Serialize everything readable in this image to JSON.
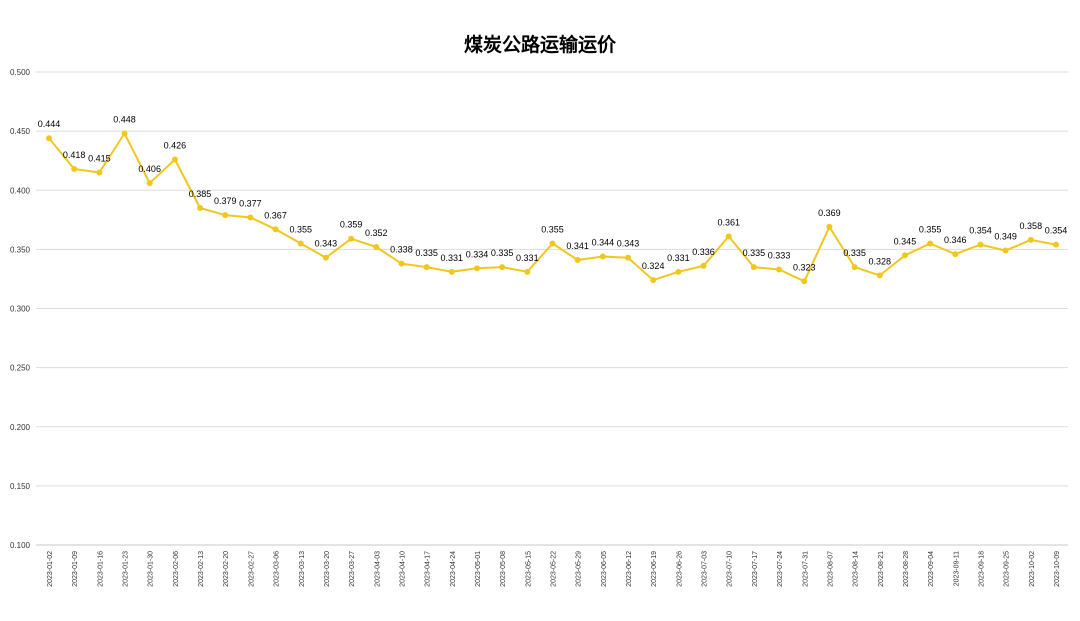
{
  "chart_data": {
    "type": "line",
    "title": "煤炭公路运输运价",
    "xlabel": "",
    "ylabel": "",
    "ylim": [
      0.1,
      0.5
    ],
    "yticks": [
      "0.100",
      "0.150",
      "0.200",
      "0.250",
      "0.300",
      "0.350",
      "0.400",
      "0.450",
      "0.500"
    ],
    "grid": true,
    "legend": "none",
    "color": "#F2C71D",
    "categories": [
      "2023-01-02",
      "2023-01-09",
      "2023-01-16",
      "2023-01-23",
      "2023-01-30",
      "2023-02-06",
      "2023-02-13",
      "2023-02-20",
      "2023-02-27",
      "2023-03-06",
      "2023-03-13",
      "2023-03-20",
      "2023-03-27",
      "2023-04-03",
      "2023-04-10",
      "2023-04-17",
      "2023-04-24",
      "2023-05-01",
      "2023-05-08",
      "2023-05-15",
      "2023-05-22",
      "2023-05-29",
      "2023-06-05",
      "2023-06-12",
      "2023-06-19",
      "2023-06-26",
      "2023-07-03",
      "2023-07-10",
      "2023-07-17",
      "2023-07-24",
      "2023-07-31",
      "2023-08-07",
      "2023-08-14",
      "2023-08-21",
      "2023-08-28",
      "2023-09-04",
      "2023-09-11",
      "2023-09-18",
      "2023-09-25",
      "2023-10-02",
      "2023-10-09"
    ],
    "values": [
      0.444,
      0.418,
      0.415,
      0.448,
      0.406,
      0.426,
      0.385,
      0.379,
      0.377,
      0.367,
      0.355,
      0.343,
      0.359,
      0.352,
      0.338,
      0.335,
      0.331,
      0.334,
      0.335,
      0.331,
      0.355,
      0.341,
      0.344,
      0.343,
      0.324,
      0.331,
      0.336,
      0.361,
      0.335,
      0.333,
      0.323,
      0.369,
      0.335,
      0.328,
      0.345,
      0.355,
      0.346,
      0.354,
      0.349,
      0.358,
      0.354
    ],
    "data_labels": [
      "0.444",
      "0.418",
      "0.415",
      "0.448",
      "0.406",
      "0.426",
      "0.385",
      "0.379",
      "0.377",
      "0.367",
      "0.355",
      "0.343",
      "0.359",
      "0.352",
      "0.338",
      "0.335",
      "0.331",
      "0.334",
      "0.335",
      "0.331",
      "0.355",
      "0.341",
      "0.344",
      "0.343",
      "0.324",
      "0.331",
      "0.336",
      "0.361",
      "0.335",
      "0.333",
      "0.323",
      "0.369",
      "0.335",
      "0.328",
      "0.345",
      "0.355",
      "0.346",
      "0.354",
      "0.349",
      "0.358",
      "0.354"
    ]
  }
}
